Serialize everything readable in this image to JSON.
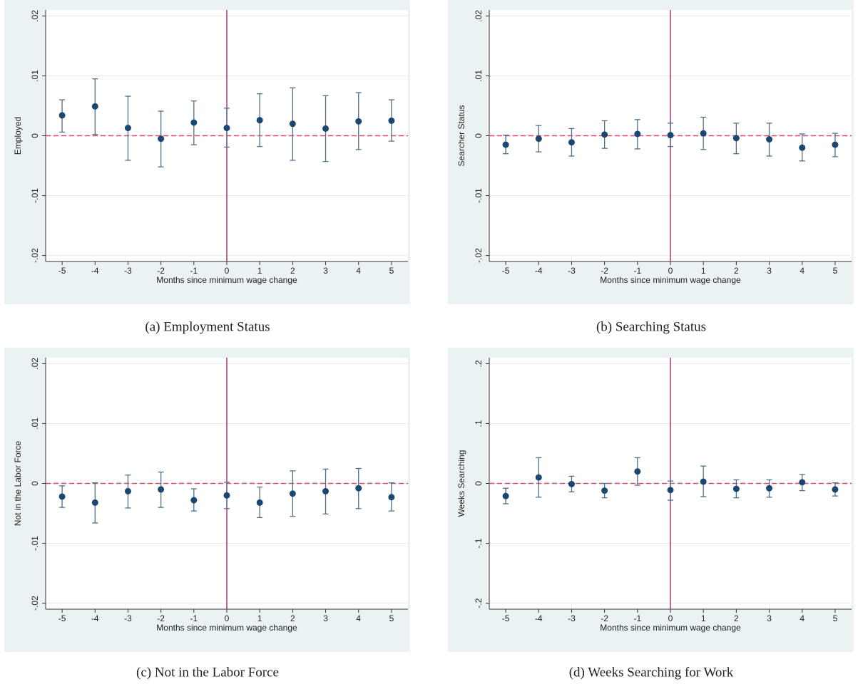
{
  "chart_data": [
    {
      "type": "errorbar",
      "caption": "(a) Employment Status",
      "ylabel": "Employed",
      "xlabel": "Months since minimum wage change",
      "x": [
        -5,
        -4,
        -3,
        -2,
        -1,
        0,
        1,
        2,
        3,
        4,
        5
      ],
      "values": [
        0.0034,
        0.0049,
        0.0013,
        -0.0005,
        0.0022,
        0.0013,
        0.0026,
        0.002,
        0.0012,
        0.0024,
        0.0025
      ],
      "ci_low": [
        0.0006,
        0.0002,
        -0.0041,
        -0.0052,
        -0.0015,
        -0.0019,
        -0.0018,
        -0.0041,
        -0.0043,
        -0.0023,
        -0.0009
      ],
      "ci_high": [
        0.006,
        0.0095,
        0.0066,
        0.0041,
        0.0058,
        0.0046,
        0.007,
        0.008,
        0.0067,
        0.0072,
        0.006
      ],
      "xlim": [
        -5.5,
        5.5
      ],
      "ylim": [
        -0.021,
        0.021
      ],
      "xticks": [
        -5,
        -4,
        -3,
        -2,
        -1,
        0,
        1,
        2,
        3,
        4,
        5
      ],
      "yticks": [
        {
          "value": -0.02,
          "label": "-.02"
        },
        {
          "value": -0.01,
          "label": "-.01"
        },
        0,
        {
          "value": 0.01,
          "label": ".01"
        },
        {
          "value": 0.02,
          "label": ".02"
        }
      ],
      "vline": 0,
      "hline": 0,
      "grid": true,
      "color": "#1a476f"
    },
    {
      "type": "errorbar",
      "caption": "(b) Searching Status",
      "ylabel": "Searcher Status",
      "xlabel": "Months since minimum wage change",
      "x": [
        -5,
        -4,
        -3,
        -2,
        -1,
        0,
        1,
        2,
        3,
        4,
        5
      ],
      "values": [
        -0.0015,
        -0.0005,
        -0.0011,
        0.0002,
        0.0003,
        0.0001,
        0.0004,
        -0.0004,
        -0.0006,
        -0.002,
        -0.0015
      ],
      "ci_low": [
        -0.003,
        -0.0027,
        -0.0034,
        -0.0021,
        -0.0022,
        -0.0018,
        -0.0023,
        -0.003,
        -0.0034,
        -0.0042,
        -0.0035
      ],
      "ci_high": [
        0.0001,
        0.0017,
        0.0012,
        0.0025,
        0.0027,
        0.0021,
        0.0031,
        0.0021,
        0.0021,
        0.0003,
        0.0004
      ],
      "xlim": [
        -5.5,
        5.5
      ],
      "ylim": [
        -0.021,
        0.021
      ],
      "xticks": [
        -5,
        -4,
        -3,
        -2,
        -1,
        0,
        1,
        2,
        3,
        4,
        5
      ],
      "yticks": [
        {
          "value": -0.02,
          "label": "-.02"
        },
        {
          "value": -0.01,
          "label": "-.01"
        },
        0,
        {
          "value": 0.01,
          "label": ".01"
        },
        {
          "value": 0.02,
          "label": ".02"
        }
      ],
      "vline": 0,
      "hline": 0,
      "grid": true,
      "color": "#1a476f"
    },
    {
      "type": "errorbar",
      "caption": "(c) Not in the Labor Force",
      "ylabel": "Not in the Labor Force",
      "xlabel": "Months since minimum wage change",
      "x": [
        -5,
        -4,
        -3,
        -2,
        -1,
        0,
        1,
        2,
        3,
        4,
        5
      ],
      "values": [
        -0.0022,
        -0.0032,
        -0.0013,
        -0.001,
        -0.0028,
        -0.002,
        -0.0032,
        -0.0017,
        -0.0013,
        -0.0008,
        -0.0023
      ],
      "ci_low": [
        -0.004,
        -0.0066,
        -0.0041,
        -0.004,
        -0.0046,
        -0.0042,
        -0.0057,
        -0.0055,
        -0.0051,
        -0.0042,
        -0.0046
      ],
      "ci_high": [
        -0.0004,
        0.0001,
        0.0014,
        0.0019,
        -0.0009,
        0.0002,
        -0.0006,
        0.0021,
        0.0024,
        0.0025,
        0.0001
      ],
      "xlim": [
        -5.5,
        5.5
      ],
      "ylim": [
        -0.021,
        0.021
      ],
      "xticks": [
        -5,
        -4,
        -3,
        -2,
        -1,
        0,
        1,
        2,
        3,
        4,
        5
      ],
      "yticks": [
        {
          "value": -0.02,
          "label": "-.02"
        },
        {
          "value": -0.01,
          "label": "-.01"
        },
        0,
        {
          "value": 0.01,
          "label": ".01"
        },
        {
          "value": 0.02,
          "label": ".02"
        }
      ],
      "vline": 0,
      "hline": 0,
      "grid": true,
      "color": "#1a476f"
    },
    {
      "type": "errorbar",
      "caption": "(d) Weeks Searching for Work",
      "ylabel": "Weeks Searching",
      "xlabel": "Months since minimum wage change",
      "x": [
        -5,
        -4,
        -3,
        -2,
        -1,
        0,
        1,
        2,
        3,
        4,
        5
      ],
      "values": [
        -0.021,
        0.01,
        -0.001,
        -0.012,
        0.02,
        -0.011,
        0.003,
        -0.009,
        -0.008,
        0.002,
        -0.01
      ],
      "ci_low": [
        -0.034,
        -0.023,
        -0.014,
        -0.024,
        -0.003,
        -0.028,
        -0.022,
        -0.024,
        -0.023,
        -0.012,
        -0.021
      ],
      "ci_high": [
        -0.008,
        0.043,
        0.012,
        0,
        0.043,
        0.004,
        0.029,
        0.006,
        0.006,
        0.015,
        0.001
      ],
      "xlim": [
        -5.5,
        5.5
      ],
      "ylim": [
        -0.21,
        0.21
      ],
      "xticks": [
        -5,
        -4,
        -3,
        -2,
        -1,
        0,
        1,
        2,
        3,
        4,
        5
      ],
      "yticks": [
        {
          "value": -0.2,
          "label": "-.2"
        },
        {
          "value": -0.1,
          "label": "-.1"
        },
        0,
        {
          "value": 0.1,
          "label": ".1"
        },
        {
          "value": 0.2,
          "label": ".2"
        }
      ],
      "vline": 0,
      "hline": 0,
      "grid": true,
      "color": "#1a476f"
    }
  ]
}
